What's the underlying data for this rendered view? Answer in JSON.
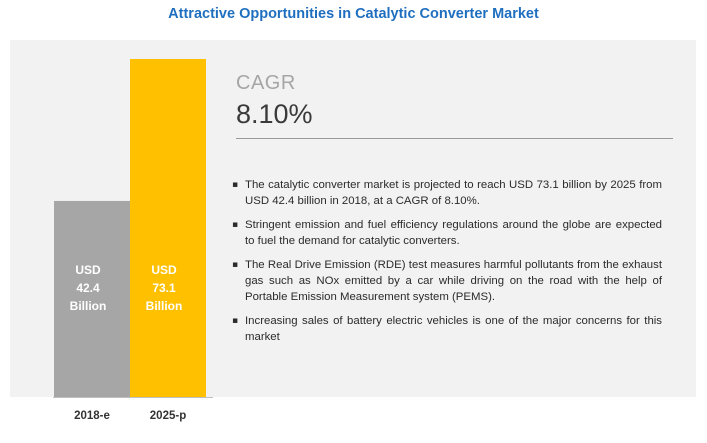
{
  "title": "Attractive Opportunities in Catalytic Converter Market",
  "cagr": {
    "label": "CAGR",
    "value": "8.10%"
  },
  "bullets": [
    "The catalytic converter market is projected to reach USD 73.1 billion by 2025 from USD 42.4 billion in 2018, at a CAGR of 8.10%.",
    "Stringent emission and fuel efficiency regulations around the globe are expected to fuel the demand for catalytic converters.",
    "The Real Drive Emission (RDE) test measures harmful pollutants from the exhaust gas such as NOx emitted by a car while driving on the road with the help of Portable Emission Measurement system (PEMS).",
    "Increasing sales of battery electric vehicles is one of the major concerns for this market"
  ],
  "chart_data": {
    "type": "bar",
    "categories": [
      "2018-e",
      "2025-p"
    ],
    "values": [
      42.4,
      73.1
    ],
    "data_labels": [
      [
        "USD",
        "42.4",
        "Billion"
      ],
      [
        "USD",
        "73.1",
        "Billion"
      ]
    ],
    "colors": [
      "#a6a6a6",
      "#ffc000"
    ],
    "ylim": [
      0,
      73.1
    ],
    "grid": false
  }
}
